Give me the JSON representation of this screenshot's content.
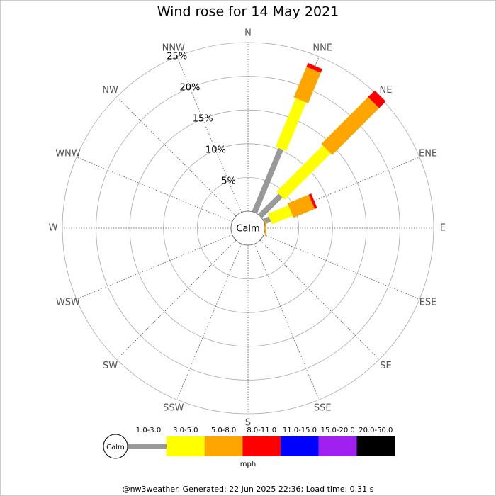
{
  "chart_data": {
    "type": "windrose",
    "title": "Wind rose for 14 May 2021",
    "categories": [
      "N",
      "NNE",
      "NE",
      "ENE",
      "E",
      "ESE",
      "SE",
      "SSE",
      "S",
      "SSW",
      "SW",
      "WSW",
      "W",
      "WNW",
      "NW",
      "NNW"
    ],
    "series": [
      {
        "name": "1.0-3.0",
        "color": "#999999",
        "values": [
          0,
          10.2,
          4.3,
          1.0,
          0,
          0,
          0,
          0,
          0,
          0,
          0,
          0,
          0,
          0,
          0,
          0
        ]
      },
      {
        "name": "3.0-5.0",
        "color": "#ffff00",
        "values": [
          0,
          7.8,
          9.7,
          3.3,
          0,
          0,
          0,
          0,
          0,
          0,
          0,
          0,
          0,
          0,
          0,
          0
        ]
      },
      {
        "name": "5.0-8.0",
        "color": "#ffa500",
        "values": [
          0,
          4.9,
          9.8,
          3.4,
          0.2,
          0,
          0,
          0,
          0,
          0,
          0,
          0,
          0,
          0,
          0,
          0
        ]
      },
      {
        "name": "8.0-11.0",
        "color": "#ff0000",
        "values": [
          0,
          0.6,
          1.4,
          0.4,
          0,
          0,
          0,
          0,
          0,
          0,
          0,
          0,
          0,
          0,
          0,
          0
        ]
      },
      {
        "name": "11.0-15.0",
        "color": "#0000ff",
        "values": [
          0,
          0,
          0,
          0,
          0,
          0,
          0,
          0,
          0,
          0,
          0,
          0,
          0,
          0,
          0,
          0
        ]
      },
      {
        "name": "15.0-20.0",
        "color": "#a020f0",
        "values": [
          0,
          0,
          0,
          0,
          0,
          0,
          0,
          0,
          0,
          0,
          0,
          0,
          0,
          0,
          0,
          0
        ]
      },
      {
        "name": "20.0-50.0",
        "color": "#000000",
        "values": [
          0,
          0,
          0,
          0,
          0,
          0,
          0,
          0,
          0,
          0,
          0,
          0,
          0,
          0,
          0,
          0
        ]
      }
    ],
    "rlim": [
      0,
      25
    ],
    "rticks": [
      {
        "value": 5,
        "label": "5%"
      },
      {
        "value": 10,
        "label": "10%"
      },
      {
        "value": 15,
        "label": "15%"
      },
      {
        "value": 20,
        "label": "20%"
      },
      {
        "value": 25,
        "label": "25%"
      }
    ],
    "calm_label": "Calm",
    "units": "mph",
    "footer": "@nw3weather. Generated: 22 Jun 2025 22:36; Load time: 0.31 s"
  }
}
